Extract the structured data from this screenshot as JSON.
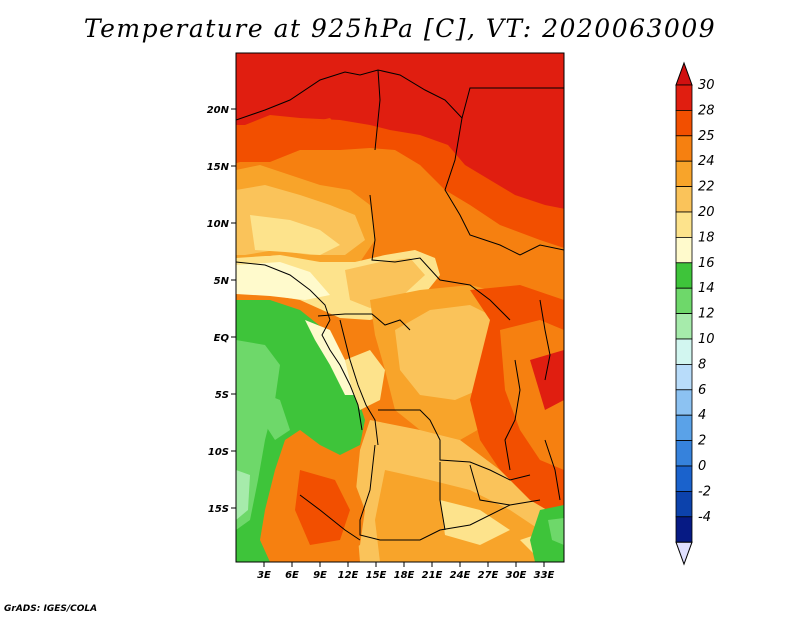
{
  "title": "Temperature at 925hPa [C], VT: 2020063009",
  "credit": "GrADS: IGES/COLA",
  "lat_labels": [
    "20N",
    "15N",
    "10N",
    "5N",
    "EQ",
    "5S",
    "10S",
    "15S"
  ],
  "lon_labels": [
    "3E",
    "6E",
    "9E",
    "12E",
    "15E",
    "18E",
    "21E",
    "24E",
    "27E",
    "30E",
    "33E"
  ],
  "colorbar": {
    "labels": [
      "30",
      "28",
      "25",
      "24",
      "22",
      "20",
      "18",
      "16",
      "14",
      "12",
      "10",
      "8",
      "6",
      "4",
      "2",
      "0",
      "-2",
      "-4"
    ],
    "colors": [
      "#e01e10",
      "#f24f00",
      "#f68010",
      "#f8a42a",
      "#fac35a",
      "#fde38c",
      "#fffacc",
      "#3ec43a",
      "#6ed86a",
      "#a6ebab",
      "#d2f6f0",
      "#b8dcfa",
      "#8cc2f2",
      "#5aa2e8",
      "#3682dc",
      "#1a62cc",
      "#0c42ac",
      "#061a84"
    ],
    "top_color": "#d01010",
    "bottom_color": "#e0e0ff"
  }
}
